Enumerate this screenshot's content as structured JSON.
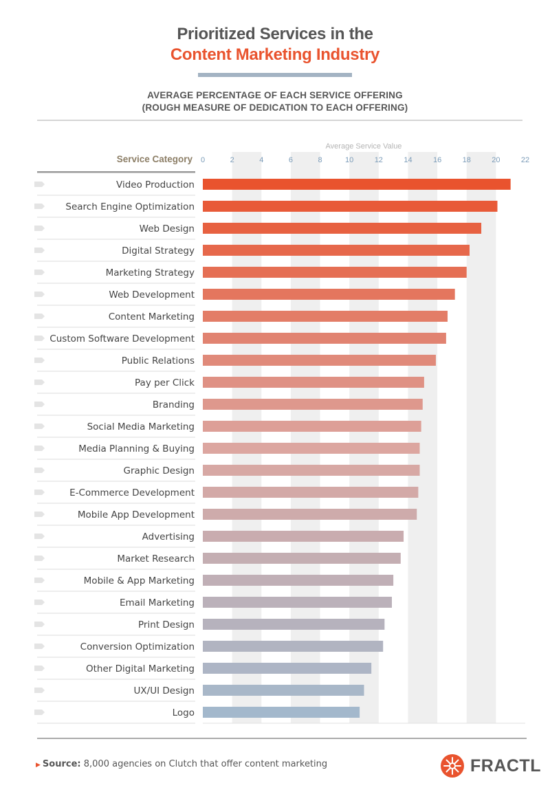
{
  "title_line1": "Prioritized Services in the",
  "title_line2": "Content Marketing Industry",
  "subtitle_line1": "AVERAGE PERCENTAGE OF EACH SERVICE OFFERING",
  "subtitle_line2": "(ROUGH MEASURE OF DEDICATION TO EACH OFFERING)",
  "source_label": "Source:",
  "source_text": "8,000 agencies on Clutch that offer content marketing",
  "logo_text": "FRACTL",
  "colors": {
    "accent": "#e9532e",
    "title_gray": "#555555",
    "tick": "#7a9bb8",
    "grid_band": "#efefef",
    "bar_top": "#e9532e",
    "bar_bottom": "#a3b8cc"
  },
  "chart_data": {
    "type": "bar",
    "orientation": "horizontal",
    "xlabel": "Average Service Value",
    "ylabel": "Service Category",
    "xlim": [
      0,
      22
    ],
    "ticks": [
      "0",
      "2",
      "4",
      "6",
      "8",
      "10",
      "12",
      "14",
      "16",
      "18",
      "20",
      "22"
    ],
    "categories": [
      "Video Production",
      "Search Engine Optimization",
      "Web Design",
      "Digital Strategy",
      "Marketing Strategy",
      "Web Development",
      "Content Marketing",
      "Custom Software Development",
      "Public Relations",
      "Pay per Click",
      "Branding",
      "Social Media Marketing",
      "Media Planning & Buying",
      "Graphic Design",
      "E-Commerce Development",
      "Mobile App Development",
      "Advertising",
      "Market Research",
      "Mobile & App Marketing",
      "Email Marketing",
      "Print Design",
      "Conversion Optimization",
      "Other Digital Marketing",
      "UX/UI Design",
      "Logo"
    ],
    "values": [
      21.0,
      20.1,
      19.0,
      18.2,
      18.0,
      17.2,
      16.7,
      16.6,
      15.9,
      15.1,
      15.0,
      14.9,
      14.8,
      14.8,
      14.7,
      14.6,
      13.7,
      13.5,
      13.0,
      12.9,
      12.4,
      12.3,
      11.5,
      11.0,
      10.7
    ],
    "grid": "alternating vertical bands"
  }
}
